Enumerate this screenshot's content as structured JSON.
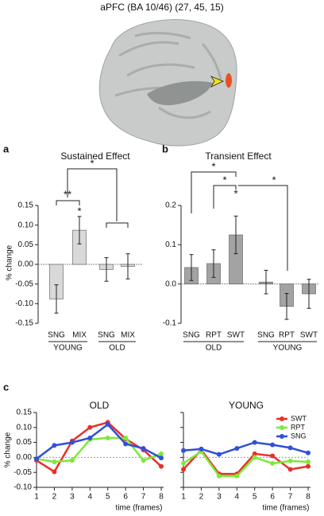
{
  "title": "aPFC (BA 10/46) (27, 45, 15)",
  "chart_data": [
    {
      "type": "bar",
      "panel": "a",
      "title": "Sustained Effect",
      "ylabel": "% change",
      "categories": [
        "SNG",
        "MIX",
        "SNG",
        "MIX"
      ],
      "groups": [
        "YOUNG",
        "OLD"
      ],
      "values": [
        -0.088,
        0.087,
        -0.013,
        -0.005
      ],
      "errors": [
        0.036,
        0.035,
        0.03,
        0.032
      ],
      "color": "#d9d9d9",
      "ylim": [
        -0.15,
        0.15
      ],
      "yticks": [
        {
          "value": 0.15,
          "label": "0.15"
        },
        {
          "value": 0.1,
          "label": "0.10"
        },
        {
          "value": 0.05,
          "label": "0.05"
        },
        {
          "value": 0,
          "label": "0.00"
        },
        {
          "value": -0.05,
          "label": "-0.05"
        },
        {
          "value": -0.1,
          "label": "-0.10"
        },
        {
          "value": -0.15,
          "label": "-0.15"
        }
      ],
      "annotations": [
        "**",
        "*",
        "*"
      ]
    },
    {
      "type": "bar",
      "panel": "b",
      "title": "Transient Effect",
      "categories": [
        "SNG",
        "RPT",
        "SWT",
        "SNG",
        "RPT",
        "SWT"
      ],
      "groups": [
        "OLD",
        "YOUNG"
      ],
      "values": [
        0.042,
        0.052,
        0.125,
        0.005,
        -0.057,
        -0.025
      ],
      "errors": [
        0.033,
        0.035,
        0.048,
        0.03,
        0.033,
        0.037
      ],
      "color": "#a3a3a3",
      "ylim": [
        -0.1,
        0.2
      ],
      "yticks": [
        0.2,
        0.1,
        {
          "value": 0,
          "label": "0.0"
        },
        -0.1
      ],
      "annotations": [
        "*",
        "*",
        "*",
        "*"
      ]
    },
    {
      "type": "line",
      "panel": "c",
      "title": "OLD",
      "ylabel": "% change",
      "xlabel": "time (frames)",
      "x": [
        1,
        2,
        3,
        4,
        5,
        6,
        7,
        8
      ],
      "xlim": [
        1,
        8
      ],
      "xticks": [
        1,
        2,
        3,
        4,
        5,
        6,
        7,
        8
      ],
      "ylim": [
        -0.1,
        0.15
      ],
      "yticks": [
        {
          "value": 0.15,
          "label": "0.15"
        },
        {
          "value": 0.1,
          "label": "0.10"
        },
        {
          "value": 0.05,
          "label": "0.05"
        },
        {
          "value": 0,
          "label": "0.00"
        },
        {
          "value": -0.05,
          "label": "-0.05"
        },
        {
          "value": -0.1,
          "label": "-0.10"
        }
      ],
      "series": [
        {
          "name": "SWT",
          "color": "#e8302a",
          "values": [
            -0.01,
            -0.048,
            0.055,
            0.1,
            0.117,
            0.062,
            0.025,
            -0.03
          ]
        },
        {
          "name": "RPT",
          "color": "#7ee83a",
          "values": [
            -0.005,
            -0.015,
            -0.01,
            0.06,
            0.065,
            0.065,
            -0.01,
            0.012
          ]
        },
        {
          "name": "SNG",
          "color": "#3050d8",
          "values": [
            -0.005,
            0.04,
            0.05,
            0.065,
            0.11,
            0.045,
            0.03,
            -0.002
          ]
        }
      ]
    },
    {
      "type": "line",
      "title": "YOUNG",
      "xlabel": "time (frames)",
      "x": [
        1,
        2,
        3,
        4,
        5,
        6,
        7,
        8
      ],
      "xlim": [
        1,
        8
      ],
      "xticks": [
        1,
        2,
        3,
        4,
        5,
        6,
        7,
        8
      ],
      "ylim": [
        -0.1,
        0.15
      ],
      "yticks": [
        0.15,
        0.1,
        0.05,
        0,
        -0.05,
        -0.1
      ],
      "ytick_labels": false,
      "legend": "upper right",
      "series": [
        {
          "name": "SWT",
          "color": "#e8302a",
          "values": [
            -0.04,
            0.025,
            -0.055,
            -0.055,
            0.012,
            0.005,
            -0.04,
            -0.03
          ]
        },
        {
          "name": "RPT",
          "color": "#7ee83a",
          "values": [
            -0.02,
            0.02,
            -0.062,
            -0.062,
            0,
            -0.02,
            -0.012,
            -0.015
          ]
        },
        {
          "name": "SNG",
          "color": "#3050d8",
          "values": [
            0.023,
            0.028,
            0.01,
            0.03,
            0.05,
            0.042,
            0.032,
            0.015
          ]
        }
      ]
    }
  ]
}
